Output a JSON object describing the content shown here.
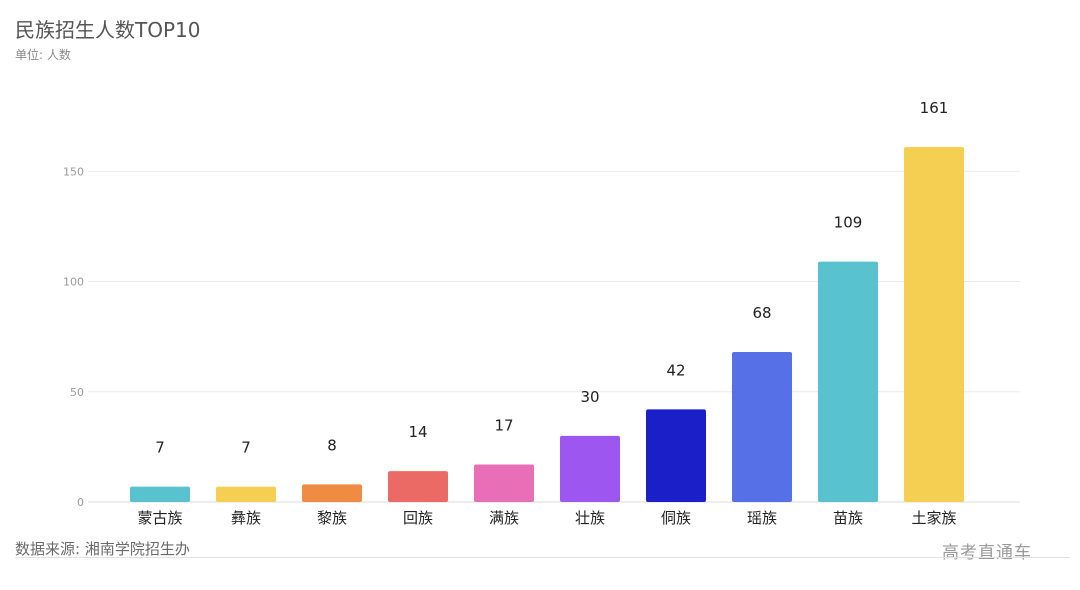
{
  "header": {
    "title": "民族招生人数TOP10",
    "unit": "单位: 人数"
  },
  "footer": {
    "source": "数据来源: 湘南学院招生办",
    "watermark": "高考直通车"
  },
  "chart_data": {
    "type": "bar",
    "title": "民族招生人数TOP10",
    "subtitle": "单位: 人数",
    "xlabel": "",
    "ylabel": "",
    "ylim": [
      0,
      161
    ],
    "yticks": [
      0,
      50,
      100,
      150
    ],
    "grid": true,
    "categories": [
      "蒙古族",
      "彝族",
      "黎族",
      "回族",
      "满族",
      "壮族",
      "侗族",
      "瑶族",
      "苗族",
      "土家族"
    ],
    "values": [
      7,
      7,
      8,
      14,
      17,
      30,
      42,
      68,
      109,
      161
    ],
    "colors": [
      "#59C2CF",
      "#F5CF52",
      "#EF8B42",
      "#EC6A66",
      "#E86EB8",
      "#9E56F0",
      "#1A1FC8",
      "#5670E8",
      "#59C2CF",
      "#F5CF52"
    ]
  }
}
